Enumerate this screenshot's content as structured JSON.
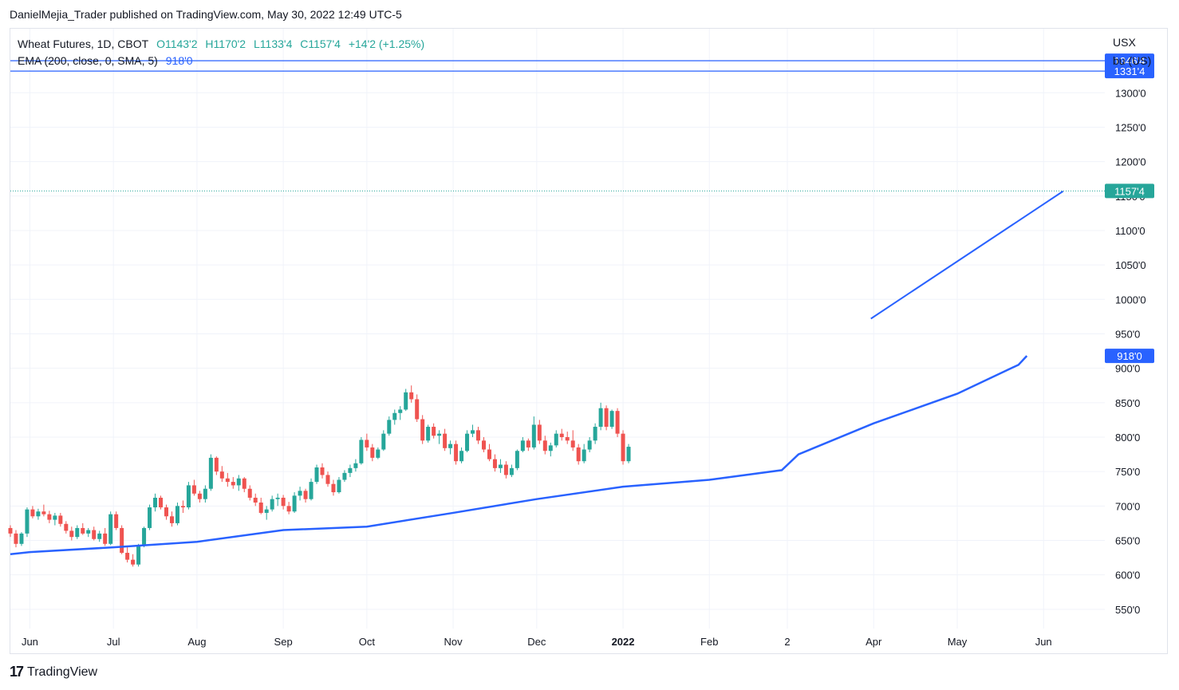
{
  "header": {
    "publisher_line": "DanielMejia_Trader published on TradingView.com, May 30, 2022 12:49 UTC-5"
  },
  "legend": {
    "instrument": "Wheat Futures, 1D, CBOT",
    "open": "O1143'2",
    "high": "H1170'2",
    "low": "L1133'4",
    "close": "C1157'4",
    "change": "+14'2 (+1.25%)",
    "ema_label": "EMA (200, close, 0, SMA, 5)",
    "ema_value": "918'0"
  },
  "units": {
    "currency": "USX",
    "unit": "bu (US)"
  },
  "footer": {
    "brand": "TradingView"
  },
  "colors": {
    "up": "#26a69a",
    "down": "#ef5350",
    "ema": "#2962ff",
    "level": "#2962ff",
    "grid": "#f0f3fa",
    "price_badge": "#26a69a"
  },
  "chart_data": {
    "type": "candlestick",
    "x_axis": {
      "ticks": [
        "Jun",
        "Jul",
        "Aug",
        "Sep",
        "Oct",
        "Nov",
        "Dec",
        "2022",
        "Feb",
        "2",
        "Apr",
        "May",
        "Jun"
      ],
      "tick_days": [
        0,
        30,
        60,
        91,
        121,
        152,
        182,
        213,
        244,
        272,
        303,
        333,
        364
      ],
      "range_days": [
        -7,
        386
      ]
    },
    "y_axis": {
      "ticks": [
        "1300'0",
        "1250'0",
        "1200'0",
        "1150'0",
        "1100'0",
        "1050'0",
        "1000'0",
        "950'0",
        "900'0",
        "850'0",
        "800'0",
        "750'0",
        "700'0",
        "650'0",
        "600'0",
        "550'0"
      ],
      "tick_values": [
        1300,
        1250,
        1200,
        1150,
        1100,
        1050,
        1000,
        950,
        900,
        850,
        800,
        750,
        700,
        650,
        600,
        550
      ],
      "range": [
        522,
        1393
      ]
    },
    "levels": [
      {
        "label": "1346'4",
        "value": 1346.5
      },
      {
        "label": "1331'4",
        "value": 1331.5
      }
    ],
    "last_price": {
      "label": "1157'4",
      "value": 1157.5
    },
    "ema_badge": {
      "label": "918'0",
      "value": 918
    },
    "ema_series": {
      "name": "EMA",
      "days": [
        -7,
        0,
        30,
        60,
        91,
        121,
        152,
        182,
        213,
        244,
        270,
        276,
        303,
        333,
        355,
        358
      ],
      "values": [
        630,
        633,
        640,
        648,
        665,
        670,
        690,
        710,
        728,
        738,
        752,
        775,
        820,
        863,
        905,
        918
      ]
    },
    "trendline": {
      "from": {
        "day": 302,
        "value": 972
      },
      "to": {
        "day": 371,
        "value": 1157
      }
    },
    "candles": [
      [
        -7,
        668,
        672,
        655,
        660
      ],
      [
        -5,
        660,
        665,
        640,
        645
      ],
      [
        -3,
        645,
        662,
        642,
        660
      ],
      [
        -1,
        660,
        698,
        655,
        695
      ],
      [
        1,
        695,
        700,
        682,
        685
      ],
      [
        3,
        685,
        696,
        680,
        692
      ],
      [
        5,
        692,
        702,
        685,
        688
      ],
      [
        7,
        688,
        693,
        675,
        680
      ],
      [
        9,
        680,
        690,
        672,
        686
      ],
      [
        11,
        686,
        690,
        670,
        674
      ],
      [
        13,
        674,
        678,
        660,
        664
      ],
      [
        15,
        664,
        670,
        650,
        655
      ],
      [
        17,
        655,
        672,
        652,
        668
      ],
      [
        19,
        668,
        675,
        658,
        660
      ],
      [
        21,
        660,
        668,
        655,
        665
      ],
      [
        23,
        665,
        670,
        650,
        652
      ],
      [
        25,
        652,
        664,
        648,
        660
      ],
      [
        27,
        660,
        668,
        642,
        645
      ],
      [
        29,
        645,
        692,
        643,
        688
      ],
      [
        31,
        688,
        692,
        665,
        668
      ],
      [
        33,
        668,
        672,
        630,
        632
      ],
      [
        35,
        632,
        640,
        618,
        622
      ],
      [
        37,
        622,
        630,
        612,
        615
      ],
      [
        39,
        615,
        645,
        612,
        642
      ],
      [
        41,
        642,
        670,
        640,
        668
      ],
      [
        43,
        668,
        702,
        665,
        698
      ],
      [
        45,
        698,
        718,
        692,
        712
      ],
      [
        47,
        712,
        715,
        695,
        698
      ],
      [
        49,
        698,
        702,
        680,
        685
      ],
      [
        51,
        685,
        692,
        670,
        675
      ],
      [
        53,
        675,
        705,
        672,
        700
      ],
      [
        55,
        700,
        708,
        690,
        698
      ],
      [
        57,
        698,
        735,
        695,
        730
      ],
      [
        59,
        730,
        738,
        715,
        718
      ],
      [
        61,
        718,
        722,
        705,
        710
      ],
      [
        63,
        710,
        730,
        705,
        725
      ],
      [
        65,
        725,
        775,
        722,
        770
      ],
      [
        67,
        770,
        772,
        745,
        750
      ],
      [
        69,
        750,
        758,
        735,
        740
      ],
      [
        71,
        740,
        748,
        728,
        735
      ],
      [
        73,
        735,
        742,
        725,
        730
      ],
      [
        75,
        730,
        745,
        722,
        740
      ],
      [
        77,
        740,
        742,
        720,
        725
      ],
      [
        79,
        725,
        730,
        708,
        712
      ],
      [
        81,
        712,
        718,
        700,
        705
      ],
      [
        83,
        705,
        712,
        688,
        690
      ],
      [
        85,
        690,
        700,
        680,
        695
      ],
      [
        87,
        695,
        715,
        692,
        710
      ],
      [
        89,
        710,
        718,
        700,
        712
      ],
      [
        91,
        712,
        716,
        695,
        700
      ],
      [
        93,
        700,
        706,
        688,
        692
      ],
      [
        95,
        692,
        720,
        690,
        715
      ],
      [
        97,
        715,
        728,
        708,
        722
      ],
      [
        99,
        722,
        725,
        705,
        710
      ],
      [
        101,
        710,
        740,
        708,
        735
      ],
      [
        103,
        735,
        760,
        732,
        756
      ],
      [
        105,
        756,
        762,
        740,
        745
      ],
      [
        107,
        745,
        750,
        728,
        732
      ],
      [
        109,
        732,
        738,
        715,
        720
      ],
      [
        111,
        720,
        742,
        718,
        738
      ],
      [
        113,
        738,
        752,
        735,
        748
      ],
      [
        115,
        748,
        760,
        742,
        755
      ],
      [
        117,
        755,
        768,
        750,
        762
      ],
      [
        119,
        762,
        800,
        760,
        796
      ],
      [
        121,
        796,
        805,
        780,
        785
      ],
      [
        123,
        785,
        790,
        765,
        770
      ],
      [
        125,
        770,
        785,
        768,
        782
      ],
      [
        127,
        782,
        810,
        780,
        805
      ],
      [
        129,
        805,
        830,
        802,
        825
      ],
      [
        131,
        825,
        840,
        818,
        835
      ],
      [
        133,
        835,
        845,
        825,
        840
      ],
      [
        135,
        840,
        870,
        838,
        865
      ],
      [
        137,
        865,
        875,
        850,
        855
      ],
      [
        139,
        855,
        862,
        822,
        826
      ],
      [
        141,
        826,
        832,
        790,
        795
      ],
      [
        143,
        795,
        818,
        792,
        815
      ],
      [
        145,
        815,
        820,
        798,
        802
      ],
      [
        147,
        802,
        810,
        790,
        805
      ],
      [
        149,
        805,
        812,
        780,
        784
      ],
      [
        151,
        784,
        795,
        775,
        790
      ],
      [
        153,
        790,
        795,
        760,
        765
      ],
      [
        155,
        765,
        785,
        762,
        780
      ],
      [
        157,
        780,
        810,
        778,
        805
      ],
      [
        159,
        805,
        818,
        800,
        810
      ],
      [
        161,
        810,
        815,
        790,
        795
      ],
      [
        163,
        795,
        800,
        778,
        782
      ],
      [
        165,
        782,
        790,
        765,
        768
      ],
      [
        167,
        768,
        775,
        750,
        755
      ],
      [
        169,
        755,
        768,
        748,
        760
      ],
      [
        171,
        760,
        765,
        740,
        745
      ],
      [
        173,
        745,
        760,
        742,
        755
      ],
      [
        175,
        755,
        782,
        752,
        780
      ],
      [
        177,
        780,
        800,
        778,
        795
      ],
      [
        179,
        795,
        798,
        780,
        785
      ],
      [
        181,
        785,
        830,
        782,
        818
      ],
      [
        183,
        818,
        825,
        790,
        795
      ],
      [
        185,
        795,
        802,
        775,
        780
      ],
      [
        187,
        780,
        792,
        772,
        788
      ],
      [
        189,
        788,
        810,
        785,
        805
      ],
      [
        191,
        805,
        812,
        795,
        800
      ],
      [
        193,
        800,
        808,
        790,
        795
      ],
      [
        195,
        795,
        810,
        780,
        785
      ],
      [
        197,
        785,
        790,
        760,
        765
      ],
      [
        199,
        765,
        790,
        762,
        782
      ],
      [
        201,
        782,
        800,
        778,
        795
      ],
      [
        203,
        795,
        820,
        790,
        815
      ],
      [
        205,
        815,
        850,
        810,
        842
      ],
      [
        207,
        842,
        846,
        810,
        815
      ],
      [
        209,
        815,
        840,
        812,
        838
      ],
      [
        211,
        838,
        842,
        800,
        805
      ],
      [
        213,
        805,
        810,
        760,
        765
      ],
      [
        215,
        765,
        790,
        762,
        786
      ]
    ]
  }
}
